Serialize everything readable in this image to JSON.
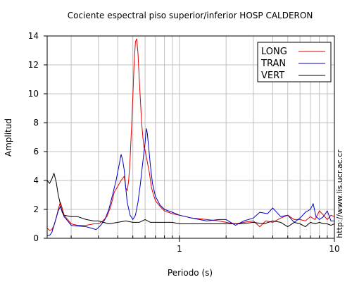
{
  "chart_data": {
    "type": "line",
    "title": "Cociente espectral piso superior/inferior  HOSP CALDERON",
    "xlabel": "Periodo (s)",
    "ylabel": "Amplitud",
    "xscale": "log",
    "xlim": [
      0.14,
      10
    ],
    "ylim": [
      0,
      14
    ],
    "x_ticks": [
      1,
      10
    ],
    "x_tick_labels": [
      "1",
      "10"
    ],
    "y_ticks": [
      0,
      2,
      4,
      6,
      8,
      10,
      12,
      14
    ],
    "y_tick_labels": [
      "0",
      "2",
      "4",
      "6",
      "8",
      "10",
      "12",
      "14"
    ],
    "grid": true,
    "legend": "top-right",
    "side_text": "http://www.lis.ucr.ac.cr",
    "series": [
      {
        "name": "LONG",
        "color": "#e00000",
        "points": [
          [
            0.14,
            0.7
          ],
          [
            0.145,
            0.55
          ],
          [
            0.15,
            0.6
          ],
          [
            0.155,
            0.9
          ],
          [
            0.16,
            1.4
          ],
          [
            0.165,
            2.0
          ],
          [
            0.17,
            2.5
          ],
          [
            0.175,
            2.1
          ],
          [
            0.18,
            1.6
          ],
          [
            0.19,
            1.3
          ],
          [
            0.2,
            1.0
          ],
          [
            0.22,
            0.9
          ],
          [
            0.25,
            0.9
          ],
          [
            0.28,
            1.0
          ],
          [
            0.3,
            1.0
          ],
          [
            0.32,
            1.2
          ],
          [
            0.34,
            1.5
          ],
          [
            0.36,
            2.2
          ],
          [
            0.38,
            3.2
          ],
          [
            0.4,
            3.6
          ],
          [
            0.42,
            4.0
          ],
          [
            0.44,
            4.3
          ],
          [
            0.45,
            3.5
          ],
          [
            0.46,
            3.3
          ],
          [
            0.47,
            4.0
          ],
          [
            0.48,
            5.5
          ],
          [
            0.49,
            7.5
          ],
          [
            0.5,
            9.8
          ],
          [
            0.51,
            12.2
          ],
          [
            0.52,
            13.6
          ],
          [
            0.53,
            13.8
          ],
          [
            0.54,
            12.8
          ],
          [
            0.55,
            11.0
          ],
          [
            0.56,
            9.5
          ],
          [
            0.57,
            8.0
          ],
          [
            0.58,
            7.0
          ],
          [
            0.59,
            6.3
          ],
          [
            0.6,
            6.1
          ],
          [
            0.62,
            5.3
          ],
          [
            0.64,
            4.5
          ],
          [
            0.66,
            3.5
          ],
          [
            0.68,
            3.0
          ],
          [
            0.7,
            2.6
          ],
          [
            0.75,
            2.2
          ],
          [
            0.8,
            1.9
          ],
          [
            0.9,
            1.7
          ],
          [
            1.0,
            1.6
          ],
          [
            1.2,
            1.4
          ],
          [
            1.5,
            1.3
          ],
          [
            1.8,
            1.2
          ],
          [
            2.0,
            1.1
          ],
          [
            2.3,
            1.0
          ],
          [
            2.6,
            1.1
          ],
          [
            3.0,
            1.2
          ],
          [
            3.3,
            0.8
          ],
          [
            3.6,
            1.2
          ],
          [
            4.0,
            1.1
          ],
          [
            4.5,
            1.4
          ],
          [
            5.0,
            1.6
          ],
          [
            5.5,
            1.3
          ],
          [
            6.0,
            1.3
          ],
          [
            6.5,
            1.2
          ],
          [
            7.0,
            1.5
          ],
          [
            7.5,
            1.3
          ],
          [
            8.0,
            1.9
          ],
          [
            8.5,
            1.6
          ],
          [
            9.0,
            1.3
          ],
          [
            9.5,
            1.6
          ],
          [
            10.0,
            1.5
          ]
        ]
      },
      {
        "name": "TRAN",
        "color": "#0000cc",
        "points": [
          [
            0.14,
            0.2
          ],
          [
            0.145,
            0.2
          ],
          [
            0.15,
            0.4
          ],
          [
            0.155,
            0.9
          ],
          [
            0.16,
            1.4
          ],
          [
            0.165,
            1.9
          ],
          [
            0.17,
            2.2
          ],
          [
            0.175,
            1.9
          ],
          [
            0.18,
            1.5
          ],
          [
            0.19,
            1.2
          ],
          [
            0.2,
            0.9
          ],
          [
            0.22,
            0.85
          ],
          [
            0.25,
            0.8
          ],
          [
            0.27,
            0.7
          ],
          [
            0.29,
            0.6
          ],
          [
            0.31,
            0.9
          ],
          [
            0.33,
            1.3
          ],
          [
            0.35,
            2.0
          ],
          [
            0.37,
            3.0
          ],
          [
            0.39,
            4.0
          ],
          [
            0.41,
            5.2
          ],
          [
            0.42,
            5.8
          ],
          [
            0.43,
            5.4
          ],
          [
            0.44,
            4.7
          ],
          [
            0.45,
            3.5
          ],
          [
            0.46,
            2.5
          ],
          [
            0.48,
            1.6
          ],
          [
            0.5,
            1.3
          ],
          [
            0.52,
            1.6
          ],
          [
            0.54,
            2.5
          ],
          [
            0.56,
            3.8
          ],
          [
            0.58,
            5.3
          ],
          [
            0.6,
            6.6
          ],
          [
            0.61,
            7.6
          ],
          [
            0.62,
            7.3
          ],
          [
            0.63,
            6.5
          ],
          [
            0.65,
            5.0
          ],
          [
            0.67,
            3.8
          ],
          [
            0.7,
            2.9
          ],
          [
            0.75,
            2.3
          ],
          [
            0.8,
            2.0
          ],
          [
            0.9,
            1.8
          ],
          [
            1.0,
            1.6
          ],
          [
            1.2,
            1.4
          ],
          [
            1.5,
            1.2
          ],
          [
            1.8,
            1.3
          ],
          [
            2.0,
            1.3
          ],
          [
            2.3,
            0.9
          ],
          [
            2.6,
            1.2
          ],
          [
            3.0,
            1.4
          ],
          [
            3.3,
            1.8
          ],
          [
            3.7,
            1.7
          ],
          [
            4.0,
            2.1
          ],
          [
            4.5,
            1.5
          ],
          [
            5.0,
            1.6
          ],
          [
            5.5,
            1.1
          ],
          [
            6.0,
            1.4
          ],
          [
            6.5,
            1.8
          ],
          [
            7.0,
            2.0
          ],
          [
            7.3,
            2.4
          ],
          [
            7.6,
            1.5
          ],
          [
            8.0,
            1.3
          ],
          [
            8.5,
            1.5
          ],
          [
            9.0,
            1.9
          ],
          [
            9.5,
            1.2
          ],
          [
            10.0,
            1.2
          ]
        ]
      },
      {
        "name": "VERT",
        "color": "#000000",
        "points": [
          [
            0.14,
            4.0
          ],
          [
            0.145,
            3.8
          ],
          [
            0.15,
            4.1
          ],
          [
            0.155,
            4.5
          ],
          [
            0.16,
            3.9
          ],
          [
            0.165,
            3.0
          ],
          [
            0.17,
            2.4
          ],
          [
            0.175,
            1.8
          ],
          [
            0.18,
            1.6
          ],
          [
            0.2,
            1.5
          ],
          [
            0.22,
            1.5
          ],
          [
            0.25,
            1.3
          ],
          [
            0.28,
            1.2
          ],
          [
            0.3,
            1.2
          ],
          [
            0.35,
            1.0
          ],
          [
            0.4,
            1.1
          ],
          [
            0.45,
            1.2
          ],
          [
            0.5,
            1.1
          ],
          [
            0.55,
            1.1
          ],
          [
            0.6,
            1.3
          ],
          [
            0.65,
            1.1
          ],
          [
            0.7,
            1.1
          ],
          [
            0.8,
            1.1
          ],
          [
            0.9,
            1.1
          ],
          [
            1.0,
            1.0
          ],
          [
            1.2,
            1.0
          ],
          [
            1.5,
            1.0
          ],
          [
            2.0,
            1.0
          ],
          [
            2.5,
            1.0
          ],
          [
            3.0,
            1.1
          ],
          [
            3.5,
            1.0
          ],
          [
            4.0,
            1.2
          ],
          [
            4.5,
            1.1
          ],
          [
            5.0,
            0.8
          ],
          [
            5.5,
            1.1
          ],
          [
            6.0,
            1.0
          ],
          [
            6.5,
            0.8
          ],
          [
            7.0,
            1.1
          ],
          [
            7.5,
            1.0
          ],
          [
            8.0,
            1.1
          ],
          [
            8.5,
            1.0
          ],
          [
            9.0,
            1.0
          ],
          [
            9.5,
            0.9
          ],
          [
            10.0,
            1.0
          ]
        ]
      }
    ]
  }
}
